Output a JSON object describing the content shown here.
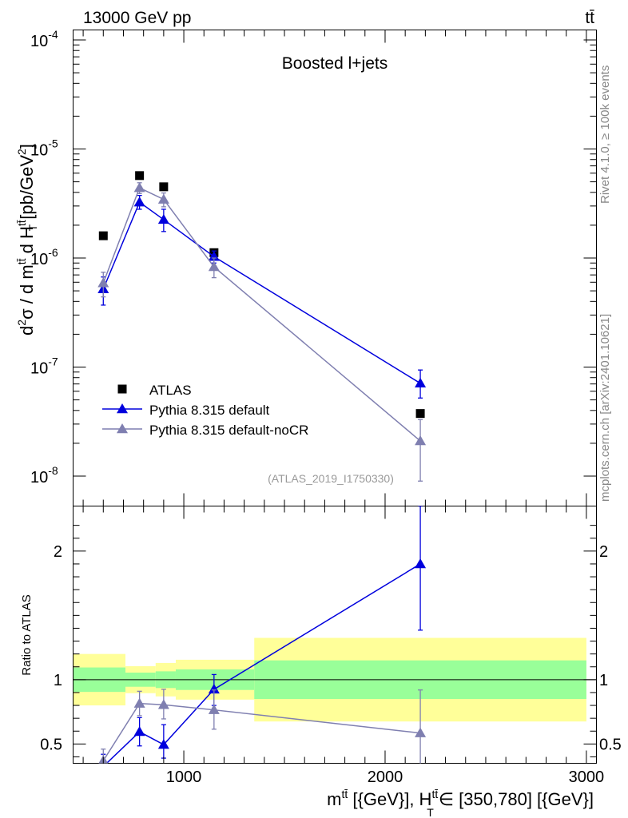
{
  "header": {
    "left": "13000 GeV pp",
    "right": "tt̄"
  },
  "side_labels": {
    "rivet": "Rivet 4.1.0, ≥ 100k events",
    "mcplots": "mcplots.cern.ch [arXiv:2401.10621]"
  },
  "chart_data": {
    "type": "scatter",
    "title": "Boosted l+jets",
    "analysis_tag": "(ATLAS_2019_I1750330)",
    "main": {
      "ylabel_parts": [
        "d",
        "2",
        "σ / d m",
        "tt̄",
        " d H",
        "tt̄",
        "T",
        " [pb/GeV",
        "2",
        "]"
      ],
      "yscale": "log",
      "ylim": [
        1e-08,
        0.0001
      ],
      "ytick_labels": [
        "10⁻⁸",
        "10⁻⁷",
        "10⁻⁶",
        "10⁻⁵",
        "10⁻⁴"
      ],
      "legend_position": "lower-left",
      "series": [
        {
          "name": "ATLAS",
          "marker": "square",
          "color": "#000000",
          "x": [
            600,
            780,
            900,
            1150,
            2175
          ],
          "y": [
            1.6e-06,
            5.7e-06,
            4.5e-06,
            1.12e-06,
            3.75e-08
          ]
        },
        {
          "name": "Pythia 8.315 default",
          "marker": "triangle",
          "color": "#0000dd",
          "x": [
            600,
            780,
            900,
            1150,
            2175
          ],
          "y": [
            5.2e-07,
            3.25e-06,
            2.25e-06,
            1.03e-06,
            7.1e-08
          ],
          "err_lo": [
            3.7e-07,
            2.8e-06,
            1.75e-06,
            9e-07,
            5.2e-08
          ],
          "err_hi": [
            6.7e-07,
            3.75e-06,
            2.8e-06,
            1.16e-06,
            9.4e-08
          ]
        },
        {
          "name": "Pythia 8.315 default-noCR",
          "marker": "triangle",
          "color": "#7f7fb0",
          "x": [
            600,
            780,
            900,
            1150,
            2175
          ],
          "y": [
            5.9e-07,
            4.4e-06,
            3.45e-06,
            8.3e-07,
            2.1e-08
          ],
          "err_lo": [
            4.4e-07,
            3.9e-06,
            2.95e-06,
            6.6e-07,
            9e-09
          ],
          "err_hi": [
            7.4e-07,
            4.9e-06,
            3.95e-06,
            1e-06,
            3.3e-08
          ]
        }
      ]
    },
    "ratio": {
      "ylabel": "Ratio to ATLAS",
      "ylim": [
        0.35,
        2.35
      ],
      "ytick_labels": [
        "0.5",
        "1",
        "2"
      ],
      "ytick_values": [
        0.5,
        1,
        2
      ],
      "bands": [
        {
          "xlo": 450,
          "xhi": 710,
          "inner": [
            0.905,
            1.095
          ],
          "outer": [
            0.8,
            1.2
          ]
        },
        {
          "xlo": 710,
          "xhi": 860,
          "inner": [
            0.945,
            1.055
          ],
          "outer": [
            0.895,
            1.105
          ]
        },
        {
          "xlo": 860,
          "xhi": 960,
          "inner": [
            0.935,
            1.065
          ],
          "outer": [
            0.87,
            1.13
          ]
        },
        {
          "xlo": 960,
          "xhi": 1350,
          "inner": [
            0.92,
            1.08
          ],
          "outer": [
            0.845,
            1.155
          ]
        },
        {
          "xlo": 1350,
          "xhi": 3000,
          "inner": [
            0.85,
            1.15
          ],
          "outer": [
            0.675,
            1.325
          ]
        }
      ],
      "series": [
        {
          "name": "Pythia 8.315 default",
          "color": "#0000dd",
          "x": [
            600,
            780,
            900,
            1150,
            2175
          ],
          "y": [
            0.325,
            0.595,
            0.495,
            0.925,
            1.9
          ],
          "err_lo": [
            0.23,
            0.485,
            0.39,
            0.8,
            1.385
          ],
          "err_hi": [
            0.42,
            0.705,
            0.65,
            1.04,
            2.35
          ]
        },
        {
          "name": "Pythia 8.315 default-noCR",
          "color": "#7f7fb0",
          "x": [
            600,
            780,
            900,
            1150,
            2175
          ],
          "y": [
            0.37,
            0.815,
            0.805,
            0.765,
            0.585
          ],
          "err_lo": [
            0.28,
            0.72,
            0.695,
            0.615,
            0.25
          ],
          "err_hi": [
            0.46,
            0.91,
            0.925,
            0.92,
            0.92
          ]
        }
      ]
    },
    "xaxis": {
      "xlim": [
        450,
        3050
      ],
      "tick_values": [
        1000,
        2000,
        3000
      ],
      "tick_labels": [
        "1000",
        "2000",
        "3000"
      ],
      "label_parts": [
        "m",
        "tt̄",
        " [{GeV}], H",
        "tt̄",
        "T",
        " ∈ [350,780] [{GeV}]"
      ]
    }
  }
}
